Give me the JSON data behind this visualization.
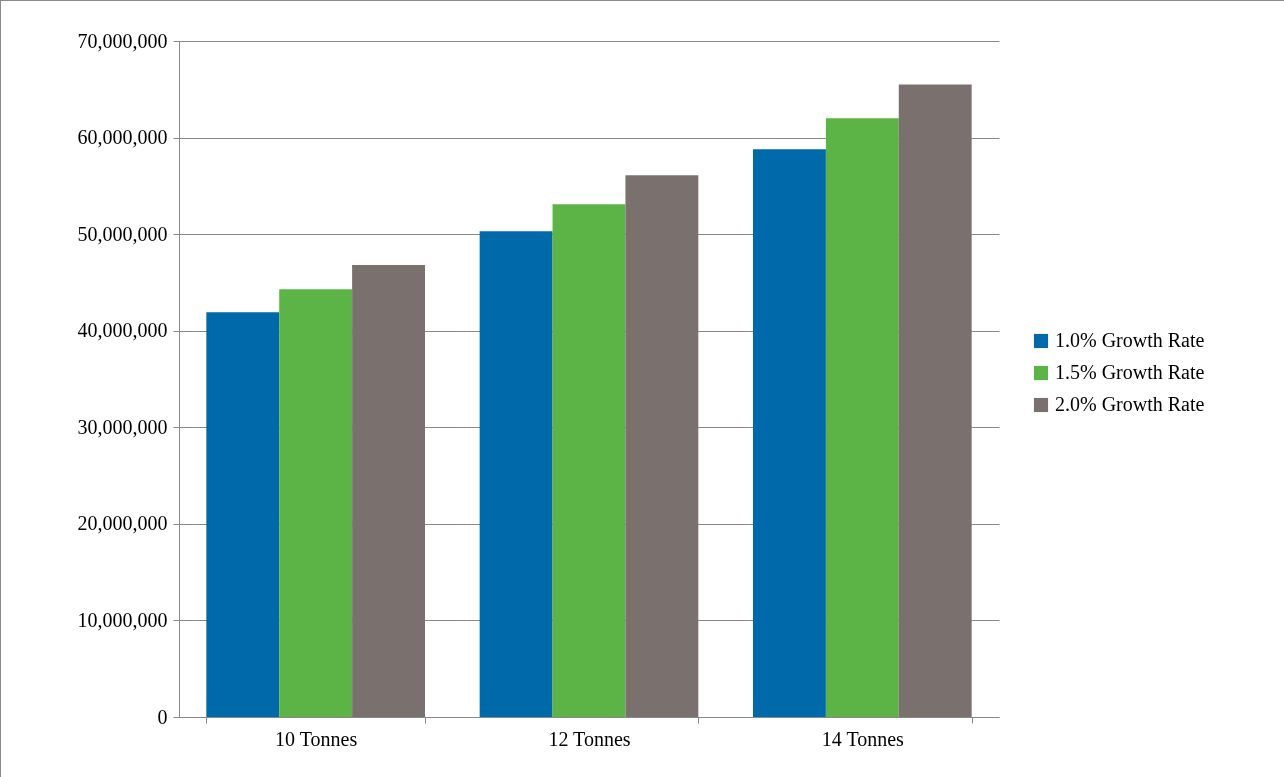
{
  "chart_data": {
    "type": "bar",
    "categories": [
      "10 Tonnes",
      "12 Tonnes",
      "14 Tonnes"
    ],
    "series": [
      {
        "name": "1.0% Growth Rate",
        "color": "#0069aa",
        "values": [
          41900000,
          50300000,
          58800000
        ]
      },
      {
        "name": "1.5% Growth Rate",
        "color": "#5db446",
        "values": [
          44300000,
          53100000,
          62000000
        ]
      },
      {
        "name": "2.0% Growth Rate",
        "color": "#7a706d",
        "values": [
          46800000,
          56100000,
          65500000
        ]
      }
    ],
    "ylim": [
      0,
      70000000
    ],
    "yticks": [
      0,
      {
        "value": 10000000,
        "label": "10,000,000"
      },
      {
        "value": 20000000,
        "label": "20,000,000"
      },
      {
        "value": 30000000,
        "label": "30,000,000"
      },
      {
        "value": 40000000,
        "label": "40,000,000"
      },
      {
        "value": 50000000,
        "label": "50,000,000"
      },
      {
        "value": 60000000,
        "label": "60,000,000"
      },
      {
        "value": 70000000,
        "label": "70,000,000"
      }
    ],
    "grid": "y",
    "legend": "right"
  }
}
